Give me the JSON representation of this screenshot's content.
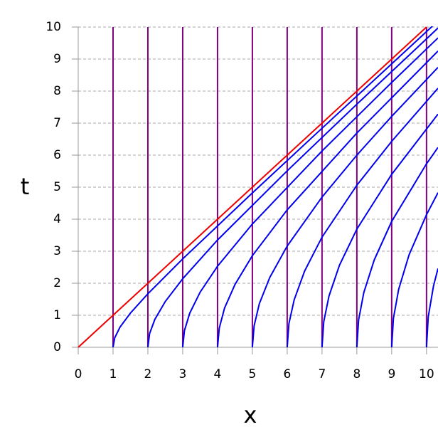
{
  "chart_data": {
    "type": "line",
    "xlabel": "x",
    "ylabel": "t",
    "xlim": [
      0,
      10.33
    ],
    "ylim": [
      0,
      10
    ],
    "xticks": [
      0,
      1,
      2,
      3,
      4,
      5,
      6,
      7,
      8,
      9,
      10
    ],
    "yticks": [
      0,
      1,
      2,
      3,
      4,
      5,
      6,
      7,
      8,
      9,
      10
    ],
    "grid": "y",
    "series": [
      {
        "color": "#800080",
        "x": [
          1,
          1
        ],
        "values": [
          0,
          10
        ]
      },
      {
        "color": "#800080",
        "x": [
          2,
          2
        ],
        "values": [
          0,
          10
        ]
      },
      {
        "color": "#800080",
        "x": [
          3,
          3
        ],
        "values": [
          0,
          10
        ]
      },
      {
        "color": "#800080",
        "x": [
          4,
          4
        ],
        "values": [
          0,
          10
        ]
      },
      {
        "color": "#800080",
        "x": [
          5,
          5
        ],
        "values": [
          0,
          10
        ]
      },
      {
        "color": "#800080",
        "x": [
          6,
          6
        ],
        "values": [
          0,
          10
        ]
      },
      {
        "color": "#800080",
        "x": [
          7,
          7
        ],
        "values": [
          0,
          10
        ]
      },
      {
        "color": "#800080",
        "x": [
          8,
          8
        ],
        "values": [
          0,
          10
        ]
      },
      {
        "color": "#800080",
        "x": [
          9,
          9
        ],
        "values": [
          0,
          10
        ]
      },
      {
        "color": "#800080",
        "x": [
          10,
          10
        ],
        "values": [
          0,
          10
        ]
      },
      {
        "color": "#0000ee",
        "x": [
          1,
          1.05,
          1.2,
          1.5,
          2,
          3,
          5,
          7,
          9,
          10.33
        ],
        "values": [
          0,
          0.3,
          0.63,
          1.07,
          1.67,
          2.76,
          4.82,
          6.84,
          8.85,
          10.19
        ]
      },
      {
        "color": "#0000ee",
        "x": [
          2,
          2.05,
          2.2,
          2.5,
          3,
          4,
          6,
          8,
          10,
          10.33
        ],
        "values": [
          0,
          0.43,
          0.87,
          1.43,
          2.14,
          3.35,
          5.51,
          7.59,
          9.63,
          9.97
        ]
      },
      {
        "color": "#0000ee",
        "x": [
          3,
          3.05,
          3.2,
          3.5,
          4,
          5,
          7,
          9,
          10.33
        ],
        "values": [
          0,
          0.52,
          1.06,
          1.72,
          2.53,
          3.85,
          6.13,
          8.27,
          9.66
        ]
      },
      {
        "color": "#0000ee",
        "x": [
          4,
          4.05,
          4.2,
          4.5,
          5,
          6,
          8,
          10.33
        ],
        "values": [
          0,
          0.6,
          1.22,
          1.96,
          2.86,
          4.29,
          6.69,
          9.25
        ]
      },
      {
        "color": "#0000ee",
        "x": [
          5,
          5.05,
          5.2,
          5.5,
          6,
          7,
          8,
          9,
          10.33
        ],
        "values": [
          0,
          0.67,
          1.36,
          2.18,
          3.16,
          4.69,
          6,
          7.21,
          8.74
        ]
      },
      {
        "color": "#0000ee",
        "x": [
          6,
          6.05,
          6.2,
          6.5,
          7,
          8,
          9,
          10.33
        ],
        "values": [
          0,
          0.74,
          1.48,
          2.38,
          3.44,
          5.06,
          6.43,
          8.09
        ]
      },
      {
        "color": "#0000ee",
        "x": [
          7,
          7.05,
          7.2,
          7.5,
          8,
          9,
          10.33
        ],
        "values": [
          0,
          0.8,
          1.6,
          2.56,
          3.69,
          5.4,
          7.28
        ]
      },
      {
        "color": "#0000ee",
        "x": [
          8,
          8.05,
          8.2,
          8.5,
          9,
          10,
          10.33
        ],
        "values": [
          0,
          0.85,
          1.71,
          2.73,
          3.93,
          5.73,
          6.24
        ]
      },
      {
        "color": "#0000ee",
        "x": [
          9,
          9.05,
          9.2,
          9.5,
          10,
          10.33
        ],
        "values": [
          0,
          0.9,
          1.81,
          2.89,
          4.14,
          4.83
        ]
      },
      {
        "color": "#0000ee",
        "x": [
          10,
          10.05,
          10.2,
          10.33
        ],
        "values": [
          0,
          0.95,
          1.91,
          2.46
        ]
      },
      {
        "color": "#ee0000",
        "x": [
          0,
          10
        ],
        "values": [
          0,
          10
        ]
      }
    ]
  }
}
